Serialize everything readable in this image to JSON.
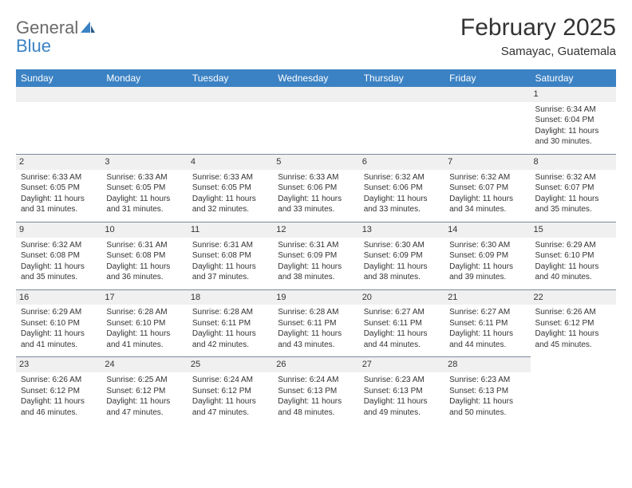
{
  "logo": {
    "word1": "General",
    "word2": "Blue"
  },
  "title": "February 2025",
  "location": "Samayac, Guatemala",
  "weekdays": [
    "Sunday",
    "Monday",
    "Tuesday",
    "Wednesday",
    "Thursday",
    "Friday",
    "Saturday"
  ],
  "colors": {
    "header_bg": "#3b82c4",
    "header_text": "#ffffff",
    "daynum_bg": "#f0f0f0",
    "border": "#7a8a9a",
    "text": "#333333",
    "logo_gray": "#6a6a6a",
    "logo_blue": "#3b82c4"
  },
  "layout": {
    "columns": 7,
    "rows": 5,
    "first_day_index": 6
  },
  "days": [
    {
      "n": "1",
      "sr": "Sunrise: 6:34 AM",
      "ss": "Sunset: 6:04 PM",
      "d1": "Daylight: 11 hours",
      "d2": "and 30 minutes."
    },
    {
      "n": "2",
      "sr": "Sunrise: 6:33 AM",
      "ss": "Sunset: 6:05 PM",
      "d1": "Daylight: 11 hours",
      "d2": "and 31 minutes."
    },
    {
      "n": "3",
      "sr": "Sunrise: 6:33 AM",
      "ss": "Sunset: 6:05 PM",
      "d1": "Daylight: 11 hours",
      "d2": "and 31 minutes."
    },
    {
      "n": "4",
      "sr": "Sunrise: 6:33 AM",
      "ss": "Sunset: 6:05 PM",
      "d1": "Daylight: 11 hours",
      "d2": "and 32 minutes."
    },
    {
      "n": "5",
      "sr": "Sunrise: 6:33 AM",
      "ss": "Sunset: 6:06 PM",
      "d1": "Daylight: 11 hours",
      "d2": "and 33 minutes."
    },
    {
      "n": "6",
      "sr": "Sunrise: 6:32 AM",
      "ss": "Sunset: 6:06 PM",
      "d1": "Daylight: 11 hours",
      "d2": "and 33 minutes."
    },
    {
      "n": "7",
      "sr": "Sunrise: 6:32 AM",
      "ss": "Sunset: 6:07 PM",
      "d1": "Daylight: 11 hours",
      "d2": "and 34 minutes."
    },
    {
      "n": "8",
      "sr": "Sunrise: 6:32 AM",
      "ss": "Sunset: 6:07 PM",
      "d1": "Daylight: 11 hours",
      "d2": "and 35 minutes."
    },
    {
      "n": "9",
      "sr": "Sunrise: 6:32 AM",
      "ss": "Sunset: 6:08 PM",
      "d1": "Daylight: 11 hours",
      "d2": "and 35 minutes."
    },
    {
      "n": "10",
      "sr": "Sunrise: 6:31 AM",
      "ss": "Sunset: 6:08 PM",
      "d1": "Daylight: 11 hours",
      "d2": "and 36 minutes."
    },
    {
      "n": "11",
      "sr": "Sunrise: 6:31 AM",
      "ss": "Sunset: 6:08 PM",
      "d1": "Daylight: 11 hours",
      "d2": "and 37 minutes."
    },
    {
      "n": "12",
      "sr": "Sunrise: 6:31 AM",
      "ss": "Sunset: 6:09 PM",
      "d1": "Daylight: 11 hours",
      "d2": "and 38 minutes."
    },
    {
      "n": "13",
      "sr": "Sunrise: 6:30 AM",
      "ss": "Sunset: 6:09 PM",
      "d1": "Daylight: 11 hours",
      "d2": "and 38 minutes."
    },
    {
      "n": "14",
      "sr": "Sunrise: 6:30 AM",
      "ss": "Sunset: 6:09 PM",
      "d1": "Daylight: 11 hours",
      "d2": "and 39 minutes."
    },
    {
      "n": "15",
      "sr": "Sunrise: 6:29 AM",
      "ss": "Sunset: 6:10 PM",
      "d1": "Daylight: 11 hours",
      "d2": "and 40 minutes."
    },
    {
      "n": "16",
      "sr": "Sunrise: 6:29 AM",
      "ss": "Sunset: 6:10 PM",
      "d1": "Daylight: 11 hours",
      "d2": "and 41 minutes."
    },
    {
      "n": "17",
      "sr": "Sunrise: 6:28 AM",
      "ss": "Sunset: 6:10 PM",
      "d1": "Daylight: 11 hours",
      "d2": "and 41 minutes."
    },
    {
      "n": "18",
      "sr": "Sunrise: 6:28 AM",
      "ss": "Sunset: 6:11 PM",
      "d1": "Daylight: 11 hours",
      "d2": "and 42 minutes."
    },
    {
      "n": "19",
      "sr": "Sunrise: 6:28 AM",
      "ss": "Sunset: 6:11 PM",
      "d1": "Daylight: 11 hours",
      "d2": "and 43 minutes."
    },
    {
      "n": "20",
      "sr": "Sunrise: 6:27 AM",
      "ss": "Sunset: 6:11 PM",
      "d1": "Daylight: 11 hours",
      "d2": "and 44 minutes."
    },
    {
      "n": "21",
      "sr": "Sunrise: 6:27 AM",
      "ss": "Sunset: 6:11 PM",
      "d1": "Daylight: 11 hours",
      "d2": "and 44 minutes."
    },
    {
      "n": "22",
      "sr": "Sunrise: 6:26 AM",
      "ss": "Sunset: 6:12 PM",
      "d1": "Daylight: 11 hours",
      "d2": "and 45 minutes."
    },
    {
      "n": "23",
      "sr": "Sunrise: 6:26 AM",
      "ss": "Sunset: 6:12 PM",
      "d1": "Daylight: 11 hours",
      "d2": "and 46 minutes."
    },
    {
      "n": "24",
      "sr": "Sunrise: 6:25 AM",
      "ss": "Sunset: 6:12 PM",
      "d1": "Daylight: 11 hours",
      "d2": "and 47 minutes."
    },
    {
      "n": "25",
      "sr": "Sunrise: 6:24 AM",
      "ss": "Sunset: 6:12 PM",
      "d1": "Daylight: 11 hours",
      "d2": "and 47 minutes."
    },
    {
      "n": "26",
      "sr": "Sunrise: 6:24 AM",
      "ss": "Sunset: 6:13 PM",
      "d1": "Daylight: 11 hours",
      "d2": "and 48 minutes."
    },
    {
      "n": "27",
      "sr": "Sunrise: 6:23 AM",
      "ss": "Sunset: 6:13 PM",
      "d1": "Daylight: 11 hours",
      "d2": "and 49 minutes."
    },
    {
      "n": "28",
      "sr": "Sunrise: 6:23 AM",
      "ss": "Sunset: 6:13 PM",
      "d1": "Daylight: 11 hours",
      "d2": "and 50 minutes."
    }
  ]
}
